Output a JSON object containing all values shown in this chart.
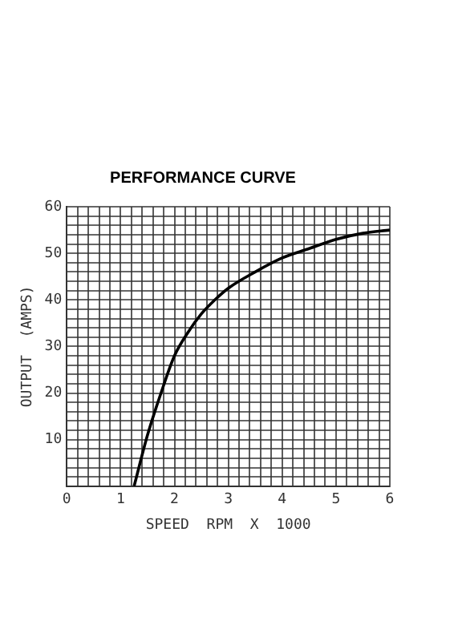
{
  "chart_data": {
    "type": "line",
    "title": "PERFORMANCE CURVE",
    "xlabel": "SPEED  RPM  X  1000",
    "ylabel": "OUTPUT  (AMPS)",
    "x": [
      1.25,
      1.5,
      1.75,
      2,
      2.25,
      2.5,
      2.75,
      3,
      3.5,
      4,
      4.5,
      5,
      5.5,
      6
    ],
    "series": [
      {
        "color": "#000000",
        "values": [
          0,
          11,
          20,
          28,
          33,
          37,
          40,
          42.5,
          46,
          49,
          51,
          53,
          54.3,
          55
        ]
      }
    ],
    "xlim": [
      0,
      6
    ],
    "ylim": [
      0,
      60
    ],
    "xticks": [
      0,
      {
        "value": 0.2,
        "label": null
      },
      {
        "value": 0.4,
        "label": null
      },
      {
        "value": 0.6,
        "label": null
      },
      {
        "value": 0.8,
        "label": null
      },
      1,
      {
        "value": 1.2,
        "label": null
      },
      {
        "value": 1.4,
        "label": null
      },
      {
        "value": 1.6,
        "label": null
      },
      {
        "value": 1.8,
        "label": null
      },
      2,
      {
        "value": 2.2,
        "label": null
      },
      {
        "value": 2.4,
        "label": null
      },
      {
        "value": 2.6,
        "label": null
      },
      {
        "value": 2.8,
        "label": null
      },
      3,
      {
        "value": 3.2,
        "label": null
      },
      {
        "value": 3.4,
        "label": null
      },
      {
        "value": 3.6,
        "label": null
      },
      {
        "value": 3.8,
        "label": null
      },
      4,
      {
        "value": 4.2,
        "label": null
      },
      {
        "value": 4.4,
        "label": null
      },
      {
        "value": 4.6,
        "label": null
      },
      {
        "value": 4.8,
        "label": null
      },
      5,
      {
        "value": 5.2,
        "label": null
      },
      {
        "value": 5.4,
        "label": null
      },
      {
        "value": 5.6,
        "label": null
      },
      {
        "value": 5.8,
        "label": null
      },
      6
    ],
    "yticks": [
      {
        "value": 0,
        "label": null
      },
      {
        "value": 2,
        "label": null
      },
      {
        "value": 4,
        "label": null
      },
      {
        "value": 6,
        "label": null
      },
      {
        "value": 8,
        "label": null
      },
      10,
      {
        "value": 12,
        "label": null
      },
      {
        "value": 14,
        "label": null
      },
      {
        "value": 16,
        "label": null
      },
      {
        "value": 18,
        "label": null
      },
      20,
      {
        "value": 22,
        "label": null
      },
      {
        "value": 24,
        "label": null
      },
      {
        "value": 26,
        "label": null
      },
      {
        "value": 28,
        "label": null
      },
      30,
      {
        "value": 32,
        "label": null
      },
      {
        "value": 34,
        "label": null
      },
      {
        "value": 36,
        "label": null
      },
      {
        "value": 38,
        "label": null
      },
      40,
      {
        "value": 42,
        "label": null
      },
      {
        "value": 44,
        "label": null
      },
      {
        "value": 46,
        "label": null
      },
      {
        "value": 48,
        "label": null
      },
      50,
      {
        "value": 52,
        "label": null
      },
      {
        "value": 54,
        "label": null
      },
      {
        "value": 56,
        "label": null
      },
      {
        "value": 58,
        "label": null
      },
      60
    ],
    "grid": true,
    "marker": "none",
    "line_style": "solid"
  }
}
